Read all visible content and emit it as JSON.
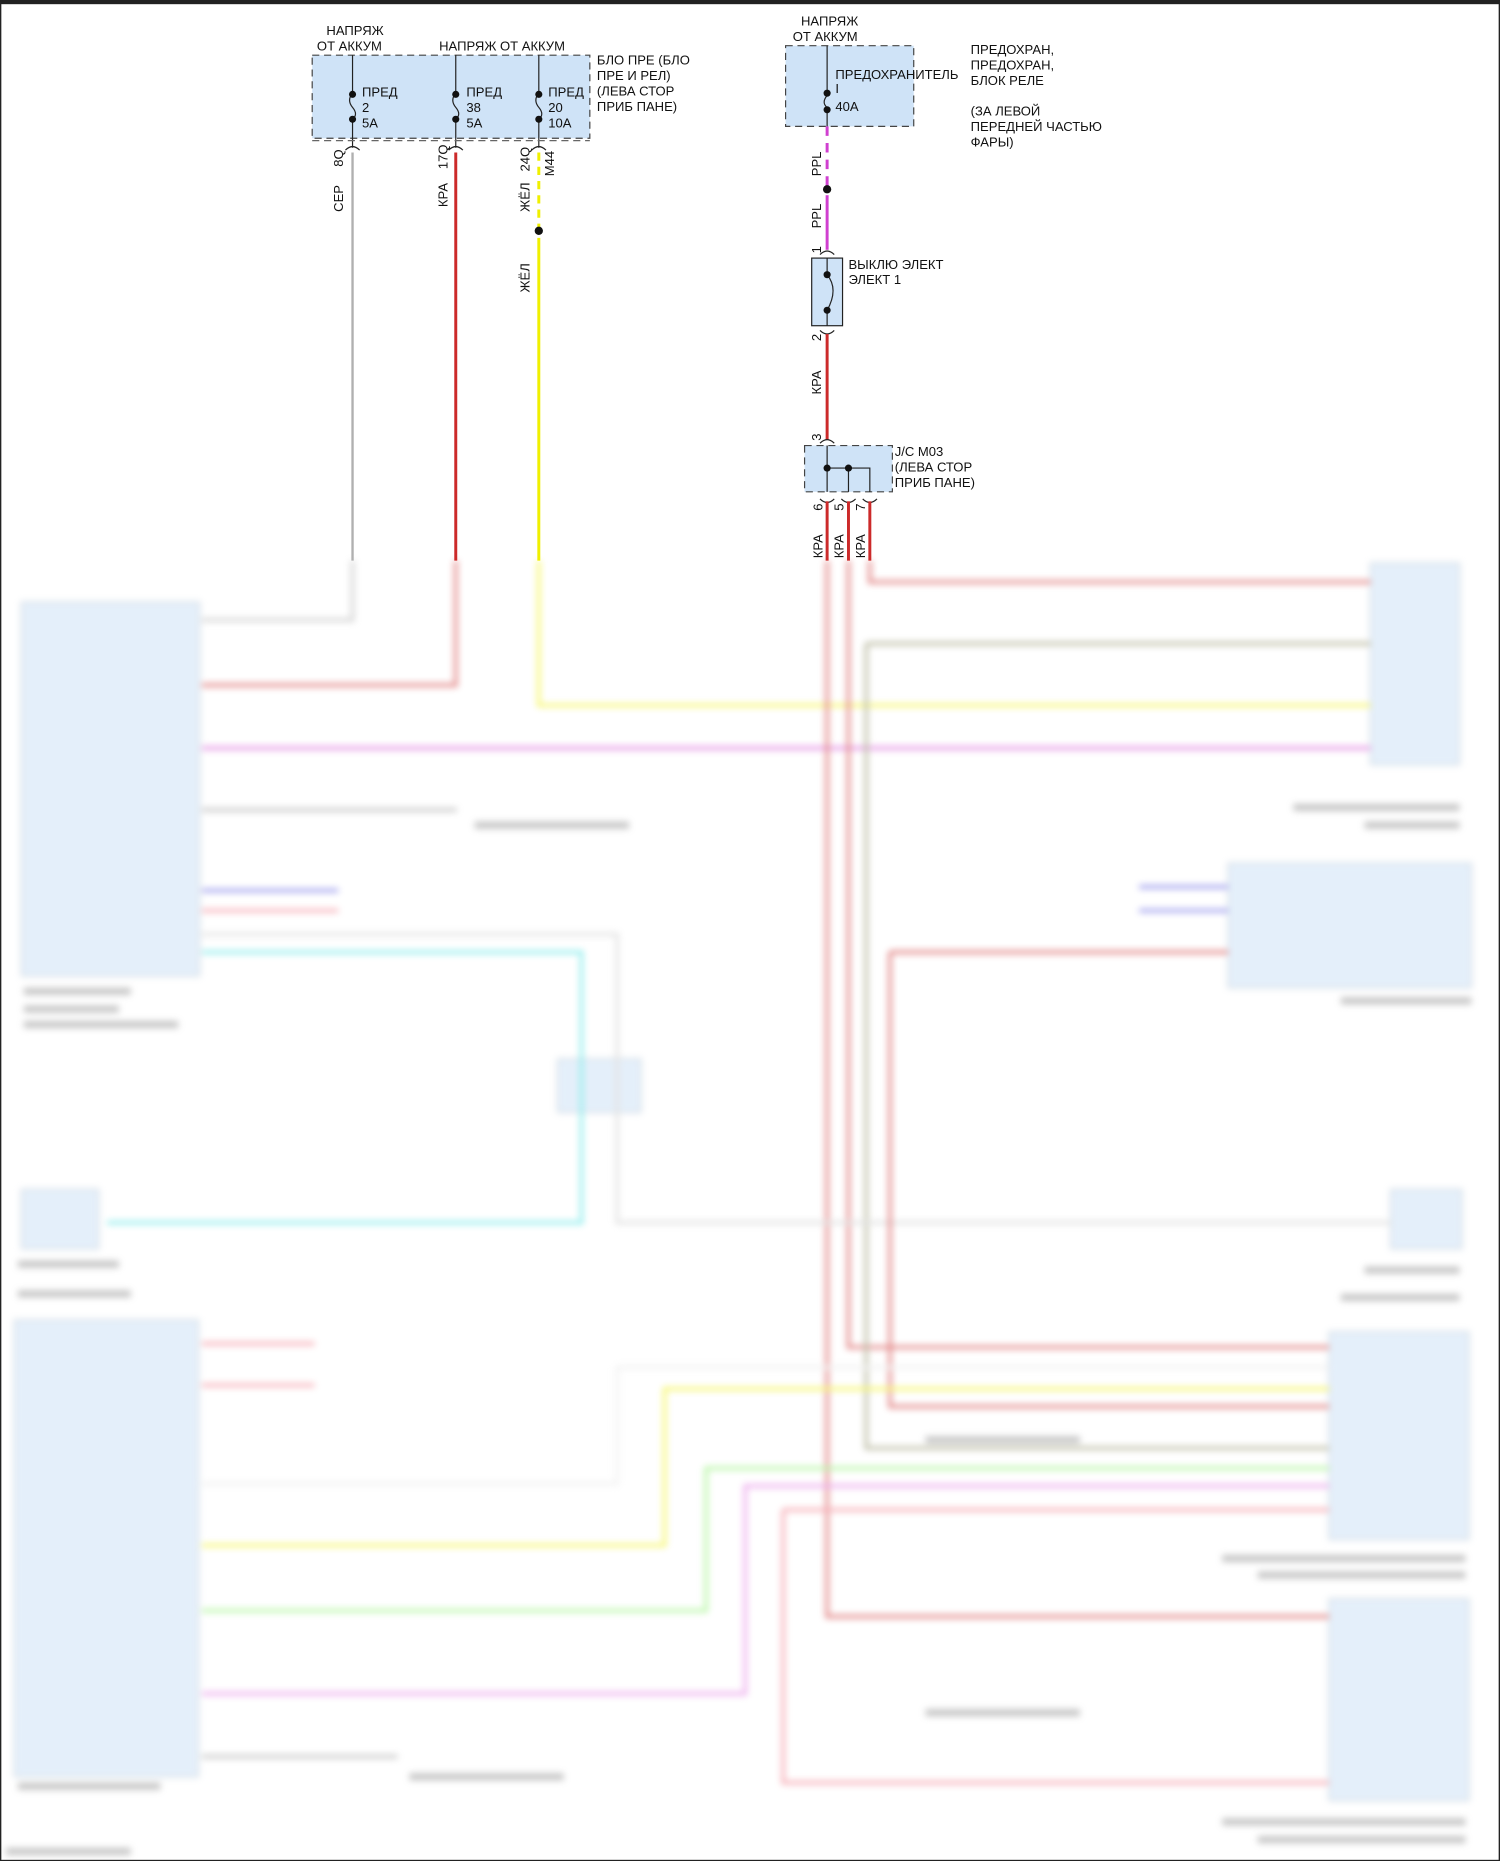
{
  "colors": {
    "gray": "#b0b0b0",
    "red": "#cc2a2a",
    "yellow": "#f0f000",
    "magenta": "#d040d0",
    "cyan": "#40e0e0",
    "green": "#80f060",
    "blue": "#5050e0",
    "olive": "#8a8a60",
    "pink": "#f07080",
    "block_fill": "#cfe3f7"
  },
  "fuse_block_left": {
    "supply_1": [
      "НАПРЯЖ",
      "ОТ АККУМ"
    ],
    "supply_2": "НАПРЯЖ ОТ АККУМ",
    "name": [
      "БЛО ПРЕ (БЛО",
      "ПРЕ И РЕЛ)",
      "(ЛЕВА СТОР",
      "ПРИБ ПАНЕ)"
    ],
    "fuses": [
      {
        "label": "ПРЕД",
        "number": "2",
        "rating": "5A",
        "pin": "8Q",
        "wire": "СЕР"
      },
      {
        "label": "ПРЕД",
        "number": "38",
        "rating": "5A",
        "pin": "17Q",
        "wire": "КРА"
      },
      {
        "label": "ПРЕД",
        "number": "20",
        "rating": "10A",
        "pin": "24Q",
        "connector": "M44",
        "wire": "ЖЁЛ",
        "wire2": "ЖЁЛ"
      }
    ]
  },
  "fuse_block_right": {
    "supply": [
      "НАПРЯЖ",
      "ОТ АККУМ"
    ],
    "fuse_label": "ПРЕДОХРАНИТЕЛЬ",
    "fuse_number": "I",
    "fuse_rating": "40A",
    "name": [
      "ПРЕДОХРАН,",
      "ПРЕДОХРАН,",
      "БЛОК РЕЛЕ",
      "(ЗА ЛЕВОЙ",
      "ПЕРЕДНЕЙ ЧАСТЬЮ",
      "ФАРЫ)"
    ],
    "wire_1": "PPL",
    "wire_2": "PPL"
  },
  "breaker": {
    "name": [
      "ВЫКЛЮ ЭЛЕКТ",
      "ЭЛЕКТ 1"
    ],
    "pin_in": "1",
    "pin_out": "2",
    "wire": "КРА"
  },
  "junction": {
    "name": [
      "J/C M03",
      "(ЛЕВА СТОР",
      "ПРИБ ПАНЕ)"
    ],
    "pin_in": "3",
    "pins_out": [
      "6",
      "5",
      "7"
    ],
    "wires": [
      "КРА",
      "КРА",
      "КРА"
    ]
  }
}
